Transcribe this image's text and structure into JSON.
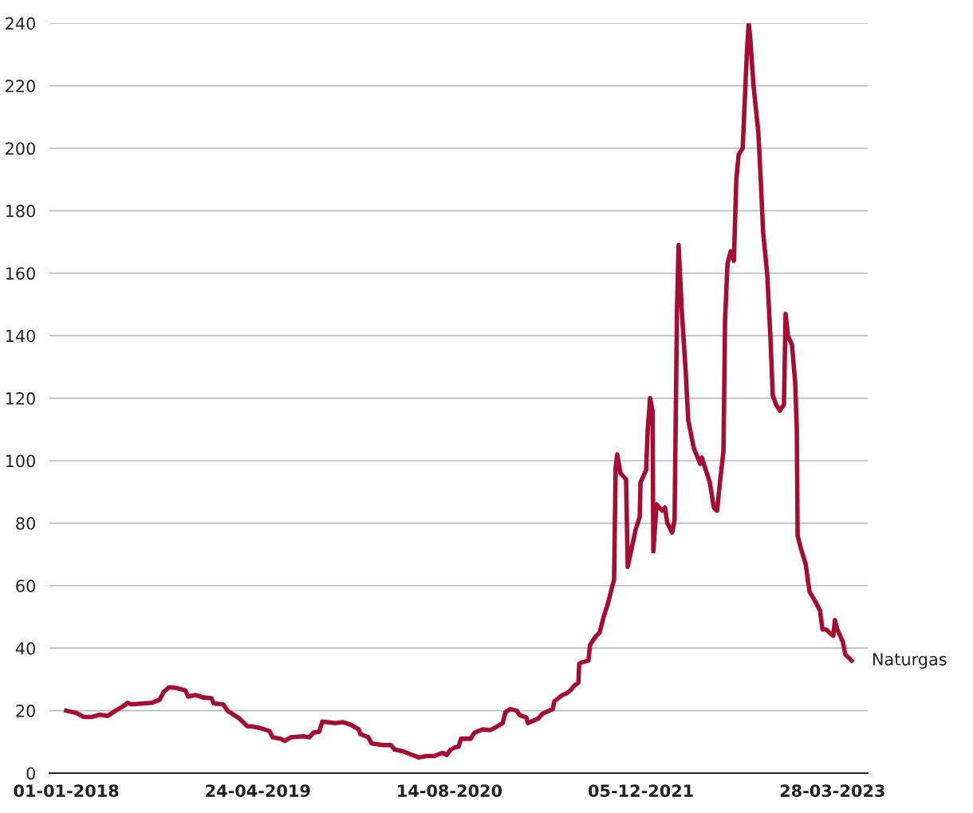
{
  "chart_data": {
    "type": "line",
    "grid": "y",
    "legend": false,
    "marker": "none",
    "line_style": "solid",
    "xlim": [
      "2017-11-20",
      "2023-06-24"
    ],
    "xticks": [
      {
        "value": "2018-01-01",
        "label": "01-01-2018"
      },
      {
        "value": "2019-04-24",
        "label": "24-04-2019"
      },
      {
        "value": "2020-08-14",
        "label": "14-08-2020"
      },
      {
        "value": "2021-12-05",
        "label": "05-12-2021"
      },
      {
        "value": "2023-03-28",
        "label": "28-03-2023"
      }
    ],
    "ylim": [
      0,
      240
    ],
    "yticks": [
      0,
      20,
      40,
      60,
      80,
      100,
      120,
      140,
      160,
      180,
      200,
      220,
      240
    ],
    "x": [
      "2018-01-01",
      "2018-01-25",
      "2018-02-14",
      "2018-03-06",
      "2018-03-26",
      "2018-04-14",
      "2018-05-04",
      "2018-05-24",
      "2018-06-03",
      "2018-06-13",
      "2018-07-13",
      "2018-08-02",
      "2018-08-22",
      "2018-09-01",
      "2018-09-15",
      "2018-10-01",
      "2018-10-25",
      "2018-11-01",
      "2018-11-19",
      "2018-12-09",
      "2018-12-29",
      "2019-01-04",
      "2019-01-28",
      "2019-02-07",
      "2019-03-09",
      "2019-03-29",
      "2019-04-08",
      "2019-04-28",
      "2019-05-23",
      "2019-05-31",
      "2019-06-20",
      "2019-06-30",
      "2019-07-16",
      "2019-08-15",
      "2019-08-31",
      "2019-09-10",
      "2019-09-24",
      "2019-10-02",
      "2019-11-03",
      "2019-11-23",
      "2019-12-12",
      "2020-01-01",
      "2020-01-05",
      "2020-01-25",
      "2020-02-02",
      "2020-03-01",
      "2020-03-21",
      "2020-03-31",
      "2020-04-20",
      "2020-05-10",
      "2020-05-30",
      "2020-06-18",
      "2020-07-08",
      "2020-07-28",
      "2020-08-07",
      "2020-08-17",
      "2020-08-27",
      "2020-09-06",
      "2020-09-12",
      "2020-10-06",
      "2020-10-16",
      "2020-11-05",
      "2020-11-25",
      "2020-12-05",
      "2020-12-25",
      "2021-01-01",
      "2021-01-13",
      "2021-01-29",
      "2021-02-06",
      "2021-02-22",
      "2021-02-26",
      "2021-03-24",
      "2021-04-03",
      "2021-04-29",
      "2021-05-03",
      "2021-05-13",
      "2021-05-23",
      "2021-06-02",
      "2021-06-12",
      "2021-06-22",
      "2021-07-02",
      "2021-07-04",
      "2021-07-12",
      "2021-07-27",
      "2021-07-31",
      "2021-08-10",
      "2021-08-16",
      "2021-08-24",
      "2021-09-03",
      "2021-09-13",
      "2021-09-21",
      "2021-09-29",
      "2021-10-03",
      "2021-10-07",
      "2021-10-15",
      "2021-10-29",
      "2021-11-02",
      "2021-11-12",
      "2021-11-22",
      "2021-12-02",
      "2021-12-04",
      "2021-12-18",
      "2021-12-22",
      "2021-12-28",
      "2022-01-03",
      "2022-01-05",
      "2022-01-13",
      "2022-01-27",
      "2022-02-03",
      "2022-02-09",
      "2022-02-21",
      "2022-02-27",
      "2022-03-05",
      "2022-03-09",
      "2022-03-17",
      "2022-03-27",
      "2022-04-02",
      "2022-04-16",
      "2022-05-02",
      "2022-05-06",
      "2022-05-26",
      "2022-06-05",
      "2022-06-13",
      "2022-06-21",
      "2022-06-29",
      "2022-07-03",
      "2022-07-09",
      "2022-07-17",
      "2022-07-25",
      "2022-07-31",
      "2022-08-06",
      "2022-08-16",
      "2022-08-21",
      "2022-08-27",
      "2022-08-31",
      "2022-09-04",
      "2022-09-12",
      "2022-09-24",
      "2022-09-30",
      "2022-10-06",
      "2022-10-16",
      "2022-10-24",
      "2022-10-30",
      "2022-11-07",
      "2022-11-17",
      "2022-11-27",
      "2022-12-01",
      "2022-12-07",
      "2022-12-17",
      "2022-12-25",
      "2022-12-29",
      "2022-12-31",
      "2023-01-08",
      "2023-01-20",
      "2023-01-30",
      "2023-02-13",
      "2023-02-25",
      "2023-03-03",
      "2023-03-12",
      "2023-03-20",
      "2023-03-30",
      "2023-04-03",
      "2023-04-09",
      "2023-04-23",
      "2023-04-29",
      "2023-05-15"
    ],
    "series": [
      {
        "name": "Naturgas",
        "color": "#a50d32",
        "values": [
          20,
          19.3,
          18,
          18,
          18.7,
          18.3,
          20,
          21.5,
          22.5,
          22,
          22.3,
          22.5,
          23.5,
          26,
          27.5,
          27.3,
          26.5,
          24.5,
          25,
          24.2,
          24,
          22.3,
          22,
          20,
          17.5,
          15,
          15,
          14.5,
          13.5,
          11.5,
          11,
          10.3,
          11.5,
          11.8,
          11.5,
          13,
          13.2,
          16.5,
          16,
          16.3,
          15.5,
          14,
          12.5,
          11.5,
          9.5,
          9,
          9,
          7.5,
          7,
          6,
          5,
          5.5,
          5.5,
          6.5,
          5.8,
          7.5,
          8.2,
          8.5,
          11,
          11,
          13,
          14,
          13.8,
          14.5,
          16,
          19.5,
          20.5,
          20,
          18.5,
          17.8,
          16,
          17.5,
          19,
          20.5,
          23,
          24,
          25,
          25.5,
          26.5,
          28,
          29,
          35,
          35.5,
          36,
          41,
          43,
          44,
          45,
          50,
          54,
          58,
          62,
          98,
          102,
          96,
          94,
          66,
          72,
          78,
          82,
          93,
          97,
          110,
          120,
          116,
          71,
          86,
          84,
          85,
          80,
          77,
          81,
          148,
          169,
          148,
          128,
          113,
          104,
          99,
          101,
          93,
          85,
          84,
          94,
          103,
          145,
          163,
          167,
          164,
          190,
          198,
          200,
          215,
          232,
          240,
          235,
          220,
          205,
          190,
          173,
          160,
          140,
          121,
          118,
          116,
          118,
          147,
          140,
          137,
          125,
          110,
          76,
          72,
          67,
          58,
          55,
          52,
          46,
          46,
          45,
          44,
          49,
          46,
          42,
          38,
          36
        ]
      }
    ]
  }
}
